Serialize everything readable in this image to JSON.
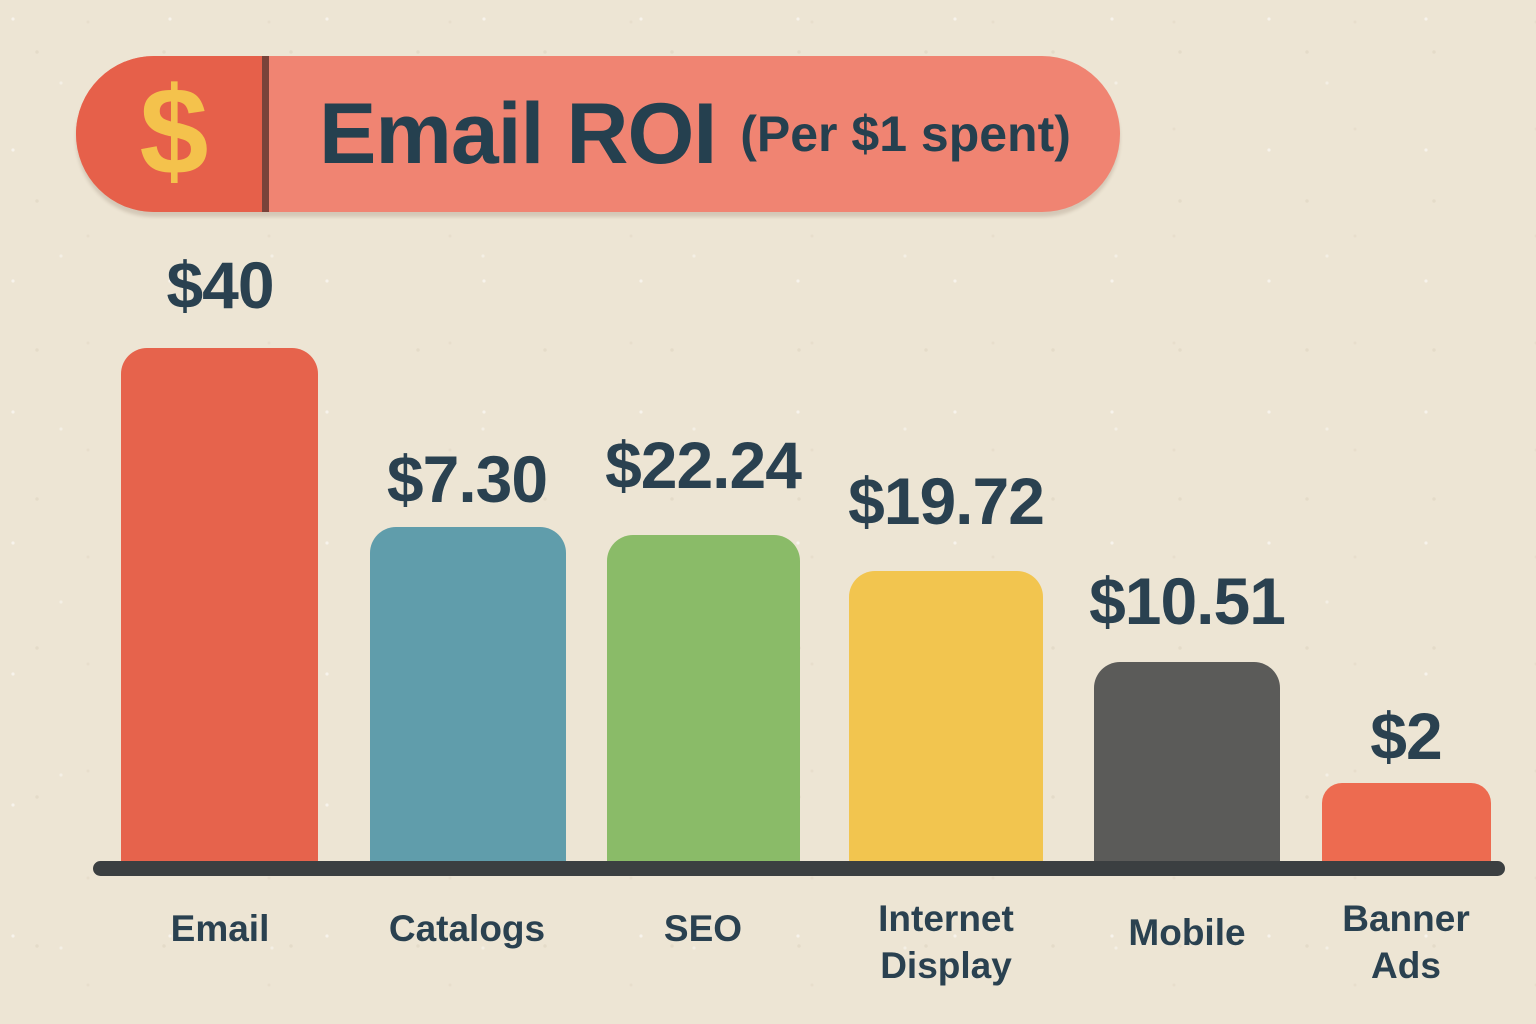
{
  "page": {
    "background_color": "#EDE5D4",
    "text_color": "#2A4150"
  },
  "header": {
    "icon_glyph": "$",
    "title": "Email ROI",
    "subtitle": "(Per $1 spent)",
    "colors": {
      "left_segment_bg": "#E6604A",
      "right_segment_bg": "#F08472",
      "divider": "#79433A",
      "icon_color": "#F4C24C",
      "text_color": "#25404F"
    }
  },
  "chart_data": {
    "type": "bar",
    "title": "Email ROI",
    "subtitle": "(Per $1 spent)",
    "categories": [
      "Email",
      "Catalogs",
      "SEO",
      "Internet Display",
      "Mobile",
      "Banner Ads"
    ],
    "values": [
      40,
      7.3,
      22.24,
      19.72,
      10.51,
      2
    ],
    "value_labels": [
      "$40",
      "$7.30",
      "$22.24",
      "$19.72",
      "$10.51",
      "$2"
    ],
    "bar_colors": [
      "#E6634C",
      "#609DAB",
      "#8ABB68",
      "#F2C54F",
      "#5B5B59",
      "#ED6B50"
    ],
    "xlabel": "",
    "ylabel": "",
    "axis_color": "#3B3F41",
    "label_color": "#2A4150",
    "grid": false,
    "legend": false
  },
  "bars": [
    {
      "category_label": "Email",
      "value": 40,
      "value_label": "$40",
      "color": "#E6634C"
    },
    {
      "category_label": "Catalogs",
      "value": 7.3,
      "value_label": "$7.30",
      "color": "#609DAB"
    },
    {
      "category_label": "SEO",
      "value": 22.24,
      "value_label": "$22.24",
      "color": "#8ABB68"
    },
    {
      "category_label": "Internet\nDisplay",
      "value": 19.72,
      "value_label": "$19.72",
      "color": "#F2C54F"
    },
    {
      "category_label": "Mobile",
      "value": 10.51,
      "value_label": "$10.51",
      "color": "#5B5B59"
    },
    {
      "category_label": "Banner\nAds",
      "value": 2,
      "value_label": "$2",
      "color": "#ED6B50"
    }
  ]
}
